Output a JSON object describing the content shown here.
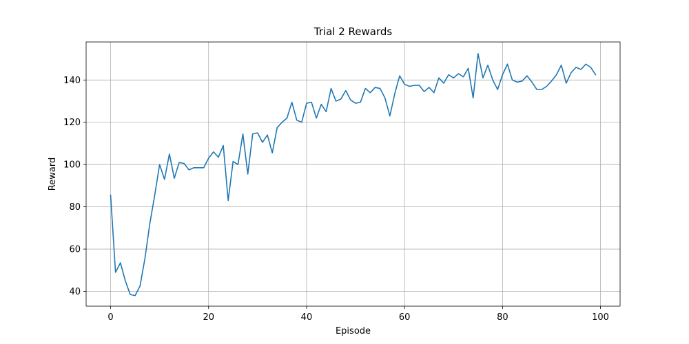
{
  "chart_data": {
    "type": "line",
    "title": "Trial 2 Rewards",
    "xlabel": "Episode",
    "ylabel": "Reward",
    "xlim": [
      -5,
      104
    ],
    "ylim": [
      33,
      158
    ],
    "xticks": [
      0,
      20,
      40,
      60,
      80,
      100
    ],
    "yticks": [
      40,
      60,
      80,
      100,
      120,
      140
    ],
    "grid": true,
    "line_color": "#1f77b4",
    "series": [
      {
        "x": [
          0,
          1,
          2,
          3,
          4,
          5,
          6,
          7,
          8,
          9,
          10,
          11,
          12,
          13,
          14,
          15,
          16,
          17,
          18,
          19,
          20,
          21,
          22,
          23,
          24,
          25,
          26,
          27,
          28,
          29,
          30,
          31,
          32,
          33,
          34,
          35,
          36,
          37,
          38,
          39,
          40,
          41,
          42,
          43,
          44,
          45,
          46,
          47,
          48,
          49,
          50,
          51,
          52,
          53,
          54,
          55,
          56,
          57,
          58,
          59,
          60,
          61,
          62,
          63,
          64,
          65,
          66,
          67,
          68,
          69,
          70,
          71,
          72,
          73,
          74,
          75,
          76,
          77,
          78,
          79,
          80,
          81,
          82,
          83,
          84,
          85,
          86,
          87,
          88,
          89,
          90,
          91,
          92,
          93,
          94,
          95,
          96,
          97,
          98,
          99
        ],
        "values": [
          85.5,
          49,
          53.5,
          45,
          38.5,
          38,
          42.5,
          55.5,
          72,
          85.5,
          100,
          93,
          105,
          93.5,
          101,
          100.5,
          97.5,
          98.5,
          98.5,
          98.5,
          103,
          106,
          103.5,
          109,
          83,
          101.5,
          100,
          114.5,
          95.5,
          114.5,
          115,
          110.5,
          114,
          105.5,
          117.5,
          120,
          122,
          129.5,
          121,
          120,
          129,
          129.5,
          122,
          128.5,
          125,
          136,
          130,
          131,
          135,
          130.5,
          129,
          129.5,
          136,
          134,
          136.5,
          136,
          131.5,
          123,
          133.5,
          142,
          138,
          137,
          137.5,
          137.5,
          134.5,
          136.5,
          134,
          141,
          138.5,
          142.5,
          141,
          143,
          141.5,
          145.5,
          131.5,
          152.5,
          141,
          147,
          140,
          135.5,
          142.5,
          147.5,
          140,
          139,
          139.5,
          142,
          139,
          135.5,
          135.5,
          137,
          139.5,
          142.5,
          147,
          138.5,
          143.5,
          146,
          145,
          147.5,
          146,
          142.5
        ]
      }
    ]
  }
}
